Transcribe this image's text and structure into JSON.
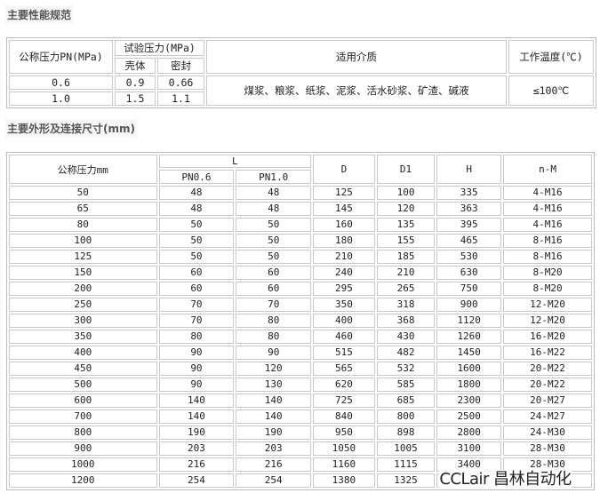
{
  "section1": {
    "title": "主要性能规范",
    "headers": {
      "pn": "公称压力PN(MPa)",
      "test": "试验压力(MPa)",
      "shell": "壳体",
      "seal": "密封",
      "medium": "适用介质",
      "temp": "工作温度(℃)"
    },
    "rows": [
      {
        "pn": "0.6",
        "shell": "0.9",
        "seal": "0.66"
      },
      {
        "pn": "1.0",
        "shell": "1.5",
        "seal": "1.1"
      }
    ],
    "medium": "煤浆、粮浆、纸浆、泥浆、活水砂浆、矿渣、碱液",
    "temp": "≤100℃"
  },
  "section2": {
    "title": "主要外形及连接尺寸(mm)",
    "headers": {
      "dn": "公称压力mm",
      "L": "L",
      "pn06": "PN0.6",
      "pn10": "PN1.0",
      "D": "D",
      "D1": "D1",
      "H": "H",
      "nM": "n-M"
    },
    "rows": [
      [
        "50",
        "48",
        "48",
        "125",
        "100",
        "335",
        "4-M16"
      ],
      [
        "65",
        "48",
        "48",
        "145",
        "120",
        "363",
        "4-M16"
      ],
      [
        "80",
        "50",
        "50",
        "160",
        "135",
        "395",
        "4-M16"
      ],
      [
        "100",
        "50",
        "50",
        "180",
        "155",
        "465",
        "8-M16"
      ],
      [
        "125",
        "50",
        "50",
        "210",
        "185",
        "530",
        "8-M16"
      ],
      [
        "150",
        "60",
        "60",
        "240",
        "210",
        "630",
        "8-M20"
      ],
      [
        "200",
        "60",
        "60",
        "295",
        "265",
        "750",
        "8-M20"
      ],
      [
        "250",
        "70",
        "70",
        "350",
        "318",
        "900",
        "12-M20"
      ],
      [
        "300",
        "70",
        "80",
        "400",
        "368",
        "1120",
        "12-M20"
      ],
      [
        "350",
        "80",
        "80",
        "460",
        "430",
        "1260",
        "16-M20"
      ],
      [
        "400",
        "90",
        "90",
        "515",
        "482",
        "1450",
        "16-M22"
      ],
      [
        "450",
        "90",
        "120",
        "565",
        "532",
        "1600",
        "20-M22"
      ],
      [
        "500",
        "90",
        "130",
        "620",
        "585",
        "1800",
        "20-M22"
      ],
      [
        "600",
        "140",
        "140",
        "725",
        "685",
        "2300",
        "20-M27"
      ],
      [
        "700",
        "140",
        "140",
        "840",
        "800",
        "2500",
        "24-M27"
      ],
      [
        "800",
        "190",
        "190",
        "950",
        "898",
        "2800",
        "24-M30"
      ],
      [
        "900",
        "203",
        "203",
        "1050",
        "1005",
        "3100",
        "28-M30"
      ],
      [
        "1000",
        "216",
        "216",
        "1160",
        "1115",
        "3400",
        "28-M30"
      ],
      [
        "1200",
        "254",
        "254",
        "1380",
        "1325",
        "",
        ""
      ]
    ]
  },
  "watermark": "CCLair 昌林自动化"
}
